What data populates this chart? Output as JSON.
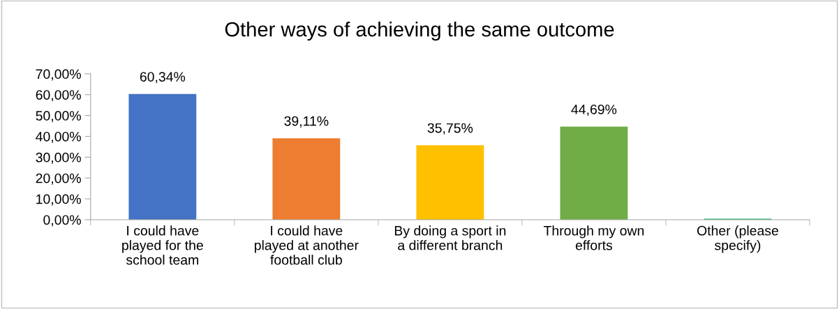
{
  "chart_data": {
    "type": "bar",
    "title": "Other ways of achieving the same outcome",
    "categories": [
      "I could have played for the school team",
      "I could have played at another football club",
      "By doing a sport in a different branch",
      "Through my own efforts",
      "Other (please specify)"
    ],
    "values": [
      60.34,
      39.11,
      35.75,
      44.69,
      0.5
    ],
    "colors": [
      "#4472c4",
      "#ed7d31",
      "#ffc000",
      "#70ad47",
      "#1fb870"
    ],
    "value_labels": [
      "60,34%",
      "39,11%",
      "35,75%",
      "44,69%",
      null
    ],
    "ylim": [
      0,
      70
    ],
    "yticks": [
      {
        "value": 0,
        "label": "0,00%"
      },
      {
        "value": 10,
        "label": "10,00%"
      },
      {
        "value": 20,
        "label": "20,00%"
      },
      {
        "value": 30,
        "label": "30,00%"
      },
      {
        "value": 40,
        "label": "40,00%"
      },
      {
        "value": 50,
        "label": "50,00%"
      },
      {
        "value": 60,
        "label": "60,00%"
      },
      {
        "value": 70,
        "label": "70,00%"
      }
    ],
    "grid": false
  }
}
